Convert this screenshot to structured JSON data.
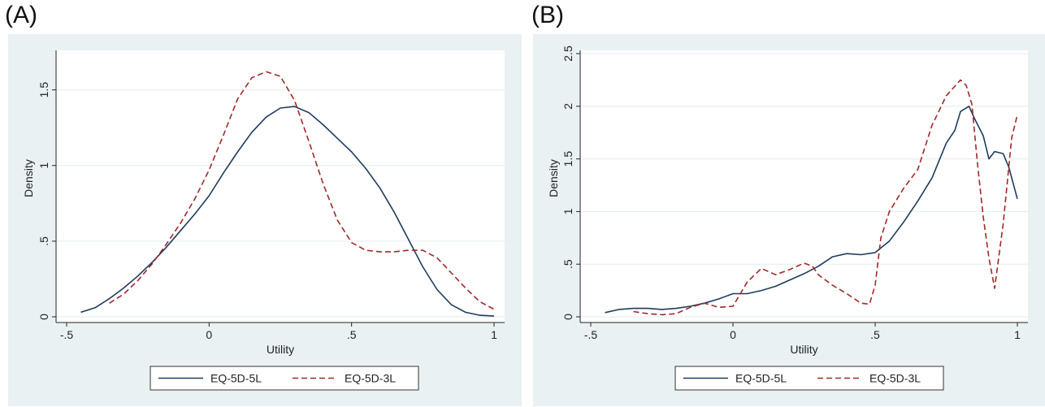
{
  "panels": [
    {
      "label": "(A)"
    },
    {
      "label": "(B)"
    }
  ],
  "chart_data": [
    {
      "type": "line",
      "panel": "(A)",
      "xlabel": "Utility",
      "ylabel": "Density",
      "xlim": [
        -0.5,
        1
      ],
      "ylim": [
        0,
        1.6
      ],
      "xticks": [
        -0.5,
        0,
        0.5,
        1
      ],
      "xtick_labels": [
        "-.5",
        "0",
        ".5",
        "1"
      ],
      "yticks": [
        0,
        0.5,
        1,
        1.5
      ],
      "ytick_labels": [
        "0",
        ".5",
        "1",
        "1.5"
      ],
      "grid": true,
      "legend": "bottom",
      "series": [
        {
          "name": "EQ-5D-5L",
          "color": "#1f3b5e",
          "style": "solid",
          "x": [
            -0.45,
            -0.4,
            -0.35,
            -0.3,
            -0.25,
            -0.2,
            -0.15,
            -0.1,
            -0.05,
            0,
            0.05,
            0.1,
            0.15,
            0.2,
            0.25,
            0.3,
            0.35,
            0.4,
            0.45,
            0.5,
            0.55,
            0.6,
            0.65,
            0.7,
            0.75,
            0.8,
            0.85,
            0.9,
            0.95,
            1.0
          ],
          "y": [
            0.03,
            0.06,
            0.12,
            0.19,
            0.27,
            0.36,
            0.46,
            0.57,
            0.68,
            0.8,
            0.95,
            1.09,
            1.22,
            1.32,
            1.38,
            1.39,
            1.35,
            1.27,
            1.18,
            1.09,
            0.98,
            0.85,
            0.69,
            0.51,
            0.33,
            0.18,
            0.08,
            0.03,
            0.01,
            0.005
          ]
        },
        {
          "name": "EQ-5D-3L",
          "color": "#a0282a",
          "style": "dashed",
          "x": [
            -0.35,
            -0.3,
            -0.25,
            -0.2,
            -0.15,
            -0.1,
            -0.05,
            0,
            0.05,
            0.1,
            0.15,
            0.2,
            0.25,
            0.3,
            0.35,
            0.4,
            0.45,
            0.5,
            0.55,
            0.6,
            0.65,
            0.7,
            0.75,
            0.8,
            0.85,
            0.9,
            0.95,
            1.0
          ],
          "y": [
            0.09,
            0.15,
            0.24,
            0.35,
            0.48,
            0.62,
            0.78,
            0.97,
            1.2,
            1.44,
            1.58,
            1.62,
            1.59,
            1.43,
            1.16,
            0.88,
            0.64,
            0.49,
            0.44,
            0.43,
            0.43,
            0.44,
            0.44,
            0.39,
            0.29,
            0.19,
            0.1,
            0.05
          ]
        }
      ]
    },
    {
      "type": "line",
      "panel": "(B)",
      "xlabel": "Utility",
      "ylabel": "Density",
      "xlim": [
        -0.5,
        1
      ],
      "ylim": [
        0,
        2.5
      ],
      "xticks": [
        -0.5,
        0,
        0.5,
        1
      ],
      "xtick_labels": [
        "-.5",
        "0",
        ".5",
        "1"
      ],
      "yticks": [
        0,
        0.5,
        1,
        1.5,
        2,
        2.5
      ],
      "ytick_labels": [
        "0",
        ".5",
        "1",
        "1.5",
        "2",
        "2.5"
      ],
      "grid": true,
      "legend": "bottom",
      "series": [
        {
          "name": "EQ-5D-5L",
          "color": "#1f3b5e",
          "style": "solid",
          "x": [
            -0.45,
            -0.4,
            -0.35,
            -0.3,
            -0.25,
            -0.2,
            -0.15,
            -0.1,
            -0.05,
            0,
            0.05,
            0.1,
            0.15,
            0.2,
            0.25,
            0.3,
            0.35,
            0.4,
            0.45,
            0.5,
            0.55,
            0.6,
            0.65,
            0.7,
            0.75,
            0.78,
            0.8,
            0.83,
            0.85,
            0.88,
            0.9,
            0.92,
            0.95,
            0.97,
            1.0
          ],
          "y": [
            0.04,
            0.07,
            0.08,
            0.08,
            0.07,
            0.08,
            0.1,
            0.13,
            0.17,
            0.22,
            0.22,
            0.25,
            0.29,
            0.35,
            0.41,
            0.48,
            0.57,
            0.6,
            0.59,
            0.61,
            0.72,
            0.9,
            1.1,
            1.32,
            1.65,
            1.77,
            1.95,
            2.0,
            1.88,
            1.72,
            1.5,
            1.57,
            1.55,
            1.42,
            1.12
          ]
        },
        {
          "name": "EQ-5D-3L",
          "color": "#a0282a",
          "style": "dashed",
          "x": [
            -0.35,
            -0.3,
            -0.25,
            -0.2,
            -0.15,
            -0.1,
            -0.05,
            0,
            0.05,
            0.1,
            0.15,
            0.2,
            0.25,
            0.28,
            0.3,
            0.35,
            0.4,
            0.45,
            0.48,
            0.5,
            0.52,
            0.55,
            0.6,
            0.65,
            0.7,
            0.72,
            0.75,
            0.77,
            0.8,
            0.82,
            0.84,
            0.86,
            0.88,
            0.9,
            0.92,
            0.95,
            0.98,
            1.0
          ],
          "y": [
            0.05,
            0.03,
            0.02,
            0.03,
            0.09,
            0.13,
            0.09,
            0.1,
            0.33,
            0.46,
            0.4,
            0.45,
            0.51,
            0.48,
            0.4,
            0.3,
            0.22,
            0.13,
            0.12,
            0.3,
            0.75,
            1.0,
            1.22,
            1.4,
            1.82,
            1.93,
            2.1,
            2.16,
            2.25,
            2.2,
            2.02,
            1.45,
            0.95,
            0.56,
            0.27,
            0.88,
            1.7,
            1.92
          ]
        }
      ]
    }
  ]
}
